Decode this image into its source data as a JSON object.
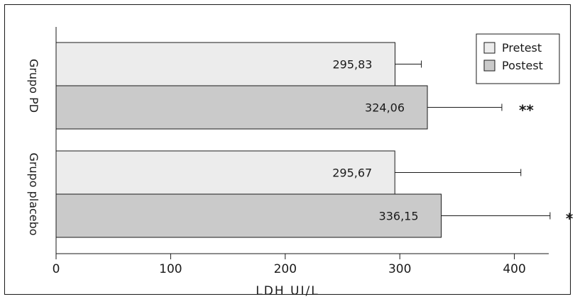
{
  "chart_data": {
    "type": "bar",
    "orientation": "horizontal",
    "xlabel": "LDH UI/L",
    "xlim": [
      0,
      430
    ],
    "xticks": [
      0,
      100,
      200,
      300,
      400
    ],
    "categories": [
      "Grupo PD",
      "Grupo placebo"
    ],
    "series": [
      {
        "name": "Pretest",
        "color": "#ececec",
        "values": [
          295.83,
          295.67
        ],
        "value_labels": [
          "295,83",
          "295,67"
        ],
        "error": [
          23,
          110
        ],
        "significance": [
          "",
          ""
        ]
      },
      {
        "name": "Postest",
        "color": "#cacaca",
        "values": [
          324.06,
          336.15
        ],
        "value_labels": [
          "324,06",
          "336,15"
        ],
        "error": [
          65,
          95
        ],
        "significance": [
          "**",
          "*"
        ]
      }
    ],
    "legend_position": "top-right",
    "grid": false
  }
}
